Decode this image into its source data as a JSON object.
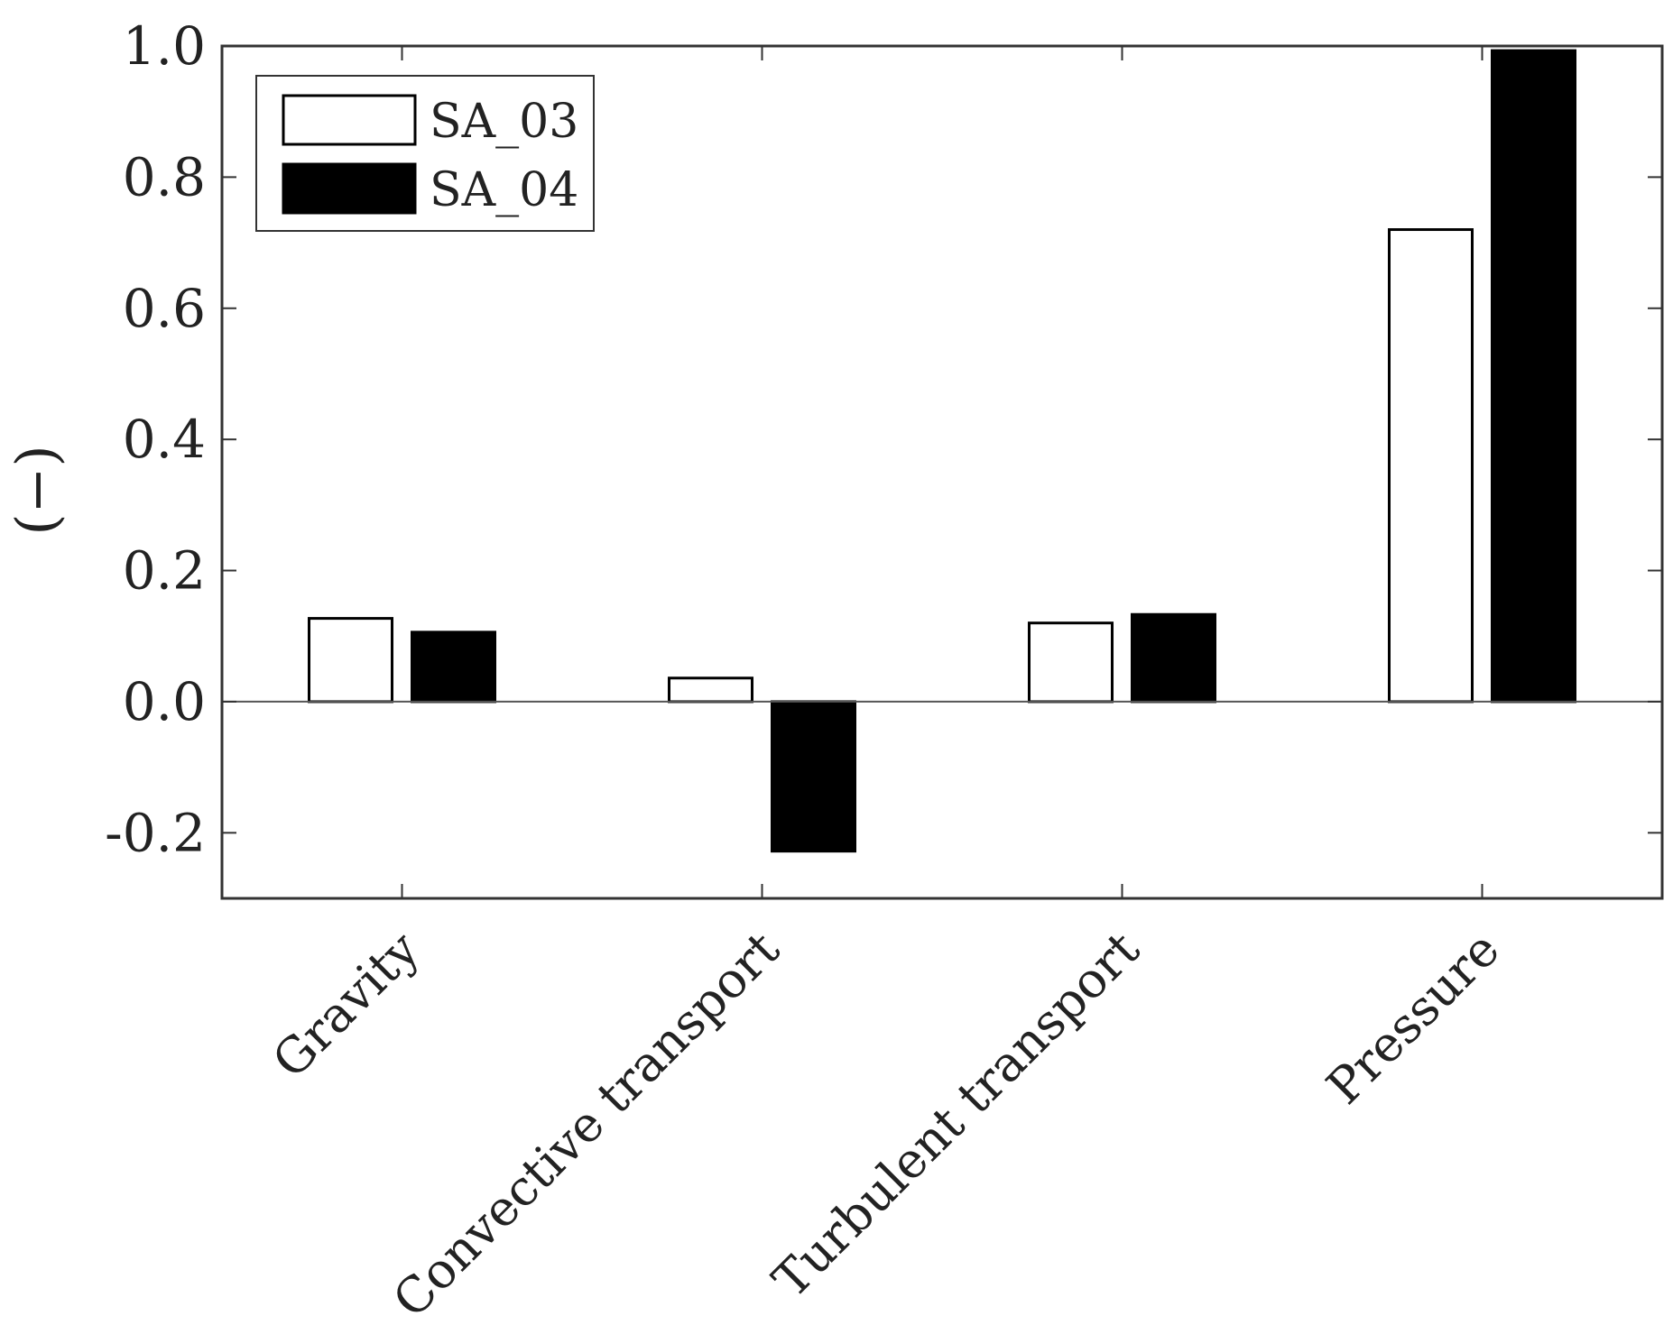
{
  "chart_data": {
    "type": "bar",
    "categories": [
      "Gravity",
      "Convective transport",
      "Turbulent transport",
      "Pressure"
    ],
    "series": [
      {
        "name": "SA_03",
        "values": [
          0.127,
          0.036,
          0.12,
          0.72
        ],
        "fill": "#ffffff"
      },
      {
        "name": "SA_04",
        "values": [
          0.106,
          -0.228,
          0.133,
          0.993
        ],
        "fill": "#000000"
      }
    ],
    "title": "",
    "xlabel": "",
    "ylabel": "(−)",
    "ylim": [
      -0.3,
      1.0
    ],
    "yticks": [
      -0.2,
      0.0,
      0.2,
      0.4,
      0.6,
      0.8,
      1.0
    ],
    "ytick_labels": [
      "-0.2",
      "0.0",
      "0.2",
      "0.4",
      "0.6",
      "0.8",
      "1.0"
    ],
    "legend_position": "top-left",
    "grid": false,
    "zero_line": true
  }
}
